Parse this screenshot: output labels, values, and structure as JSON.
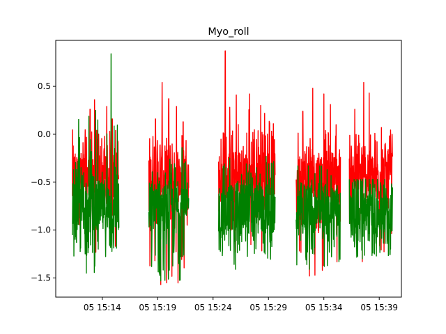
{
  "chart_data": {
    "type": "line",
    "title": "Myo_roll",
    "xlabel": "",
    "ylabel": "",
    "x_ticks": [
      "05 15:14",
      "05 15:19",
      "05 15:24",
      "05 15:29",
      "05 15:34",
      "05 15:39"
    ],
    "y_ticks": [
      0.5,
      0.0,
      -0.5,
      -1.0,
      -1.5
    ],
    "y_tick_labels": [
      "0.5",
      "0.0",
      "−0.5",
      "−1.0",
      "−1.5"
    ],
    "xlim_minutes": [
      "15:09.8",
      "15:41.0"
    ],
    "ylim": [
      -1.7,
      0.98
    ],
    "grid": false,
    "legend": "none",
    "series": [
      {
        "color": "#ff0000",
        "segments": [
          {
            "start": "15:11.3",
            "end": "15:15.5",
            "envelope_min": -1.27,
            "envelope_max": 0.36,
            "peaks": [
              {
                "t": "15:12.9",
                "v": 0.26
              },
              {
                "t": "15:13.3",
                "v": 0.36
              },
              {
                "t": "15:14.4",
                "v": 0.29
              },
              {
                "t": "15:14.9",
                "v": 0.16
              },
              {
                "t": "15:15.2",
                "v": 0.04
              }
            ]
          },
          {
            "start": "15:18.2",
            "end": "15:21.8",
            "envelope_min": -1.57,
            "envelope_max": 0.54,
            "peaks": [
              {
                "t": "15:18.8",
                "v": 0.16
              },
              {
                "t": "15:19.4",
                "v": 0.54
              },
              {
                "t": "15:20.0",
                "v": 0.37
              },
              {
                "t": "15:20.7",
                "v": 0.29
              },
              {
                "t": "15:21.3",
                "v": 0.13
              }
            ]
          },
          {
            "start": "15:24.5",
            "end": "15:29.6",
            "envelope_min": -1.23,
            "envelope_max": 0.87,
            "peaks": [
              {
                "t": "15:25.1",
                "v": 0.87
              },
              {
                "t": "15:26.1",
                "v": 0.41
              },
              {
                "t": "15:27.3",
                "v": 0.42
              },
              {
                "t": "15:28.3",
                "v": 0.3
              },
              {
                "t": "15:29.1",
                "v": 0.12
              }
            ]
          },
          {
            "start": "15:31.5",
            "end": "15:35.5",
            "envelope_min": -1.48,
            "envelope_max": 0.48,
            "peaks": [
              {
                "t": "15:32.1",
                "v": 0.24
              },
              {
                "t": "15:33.0",
                "v": 0.48
              },
              {
                "t": "15:34.0",
                "v": 0.42
              },
              {
                "t": "15:34.6",
                "v": 0.31
              },
              {
                "t": "15:35.1",
                "v": 0.1
              }
            ]
          },
          {
            "start": "15:36.3",
            "end": "15:40.2",
            "envelope_min": -1.33,
            "envelope_max": 0.54,
            "peaks": [
              {
                "t": "15:36.8",
                "v": 0.26
              },
              {
                "t": "15:37.6",
                "v": 0.54
              },
              {
                "t": "15:38.1",
                "v": 0.43
              },
              {
                "t": "15:39.2",
                "v": 0.07
              },
              {
                "t": "15:39.8",
                "v": -0.16
              }
            ]
          }
        ]
      },
      {
        "color": "#008000",
        "segments": [
          {
            "start": "15:11.3",
            "end": "15:15.5",
            "envelope_min": -1.45,
            "envelope_max": 0.84,
            "peaks": [
              {
                "t": "15:12.2",
                "v": -0.43
              },
              {
                "t": "15:13.6",
                "v": 0.15
              },
              {
                "t": "15:14.8",
                "v": 0.84
              },
              {
                "t": "15:15.1",
                "v": -0.15
              }
            ]
          },
          {
            "start": "15:18.2",
            "end": "15:21.8",
            "envelope_min": -1.53,
            "envelope_max": -0.14,
            "peaks": [
              {
                "t": "15:19.0",
                "v": -0.4
              },
              {
                "t": "15:20.1",
                "v": -0.26
              },
              {
                "t": "15:21.2",
                "v": -0.14
              }
            ]
          },
          {
            "start": "15:24.5",
            "end": "15:29.6",
            "envelope_min": -1.41,
            "envelope_max": -0.23,
            "peaks": [
              {
                "t": "15:25.5",
                "v": -0.25
              },
              {
                "t": "15:27.0",
                "v": -0.31
              },
              {
                "t": "15:28.8",
                "v": -0.23
              }
            ]
          },
          {
            "start": "15:31.5",
            "end": "15:35.5",
            "envelope_min": -1.41,
            "envelope_max": -0.33,
            "peaks": [
              {
                "t": "15:32.6",
                "v": -0.33
              },
              {
                "t": "15:34.3",
                "v": -0.37
              }
            ]
          },
          {
            "start": "15:36.3",
            "end": "15:40.2",
            "envelope_min": -1.3,
            "envelope_max": -0.47,
            "peaks": [
              {
                "t": "15:37.5",
                "v": -0.47
              },
              {
                "t": "15:39.4",
                "v": -0.53
              }
            ]
          }
        ]
      }
    ]
  }
}
